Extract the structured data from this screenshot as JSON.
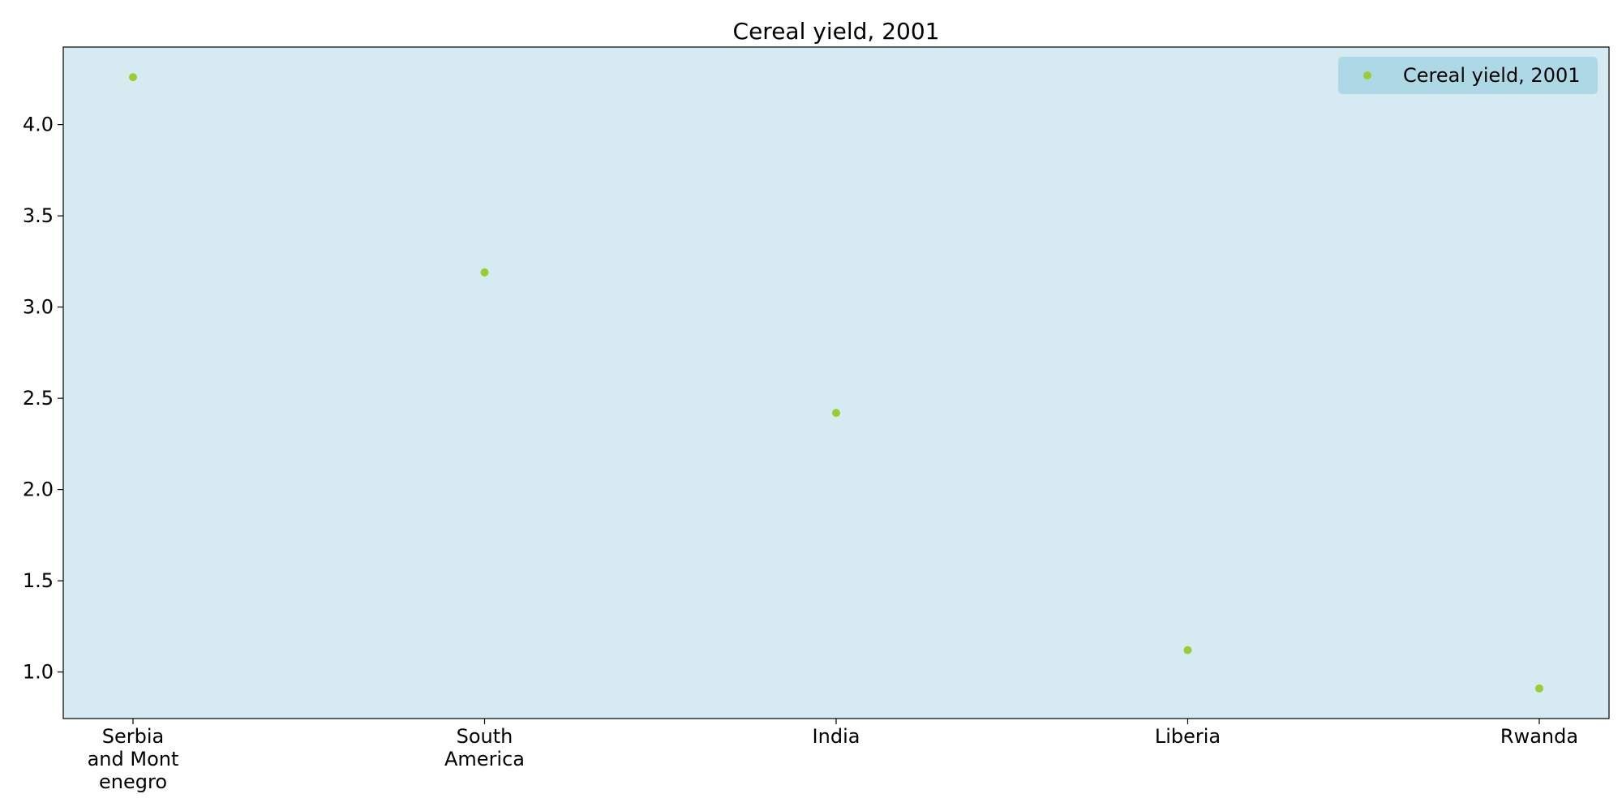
{
  "chart_data": {
    "type": "scatter",
    "title": "Cereal yield, 2001",
    "xlabel": "",
    "ylabel": "",
    "categories": [
      [
        "Serbia",
        "and Mont",
        "enegro"
      ],
      [
        "South",
        "America"
      ],
      [
        "India"
      ],
      [
        "Liberia"
      ],
      [
        "Rwanda"
      ]
    ],
    "series": [
      {
        "name": "Cereal yield, 2001",
        "values": [
          4.26,
          3.19,
          2.42,
          1.12,
          0.91
        ]
      }
    ],
    "ylim": [
      0.745,
      4.425
    ],
    "yticks": [
      "1.0",
      "1.5",
      "2.0",
      "2.5",
      "3.0",
      "3.5",
      "4.0"
    ],
    "grid": false,
    "legend_position": "top-right",
    "colors": {
      "plot_background": "#d5ebf1",
      "marker": "#9acd32",
      "legend_background": "#add8e6"
    }
  }
}
